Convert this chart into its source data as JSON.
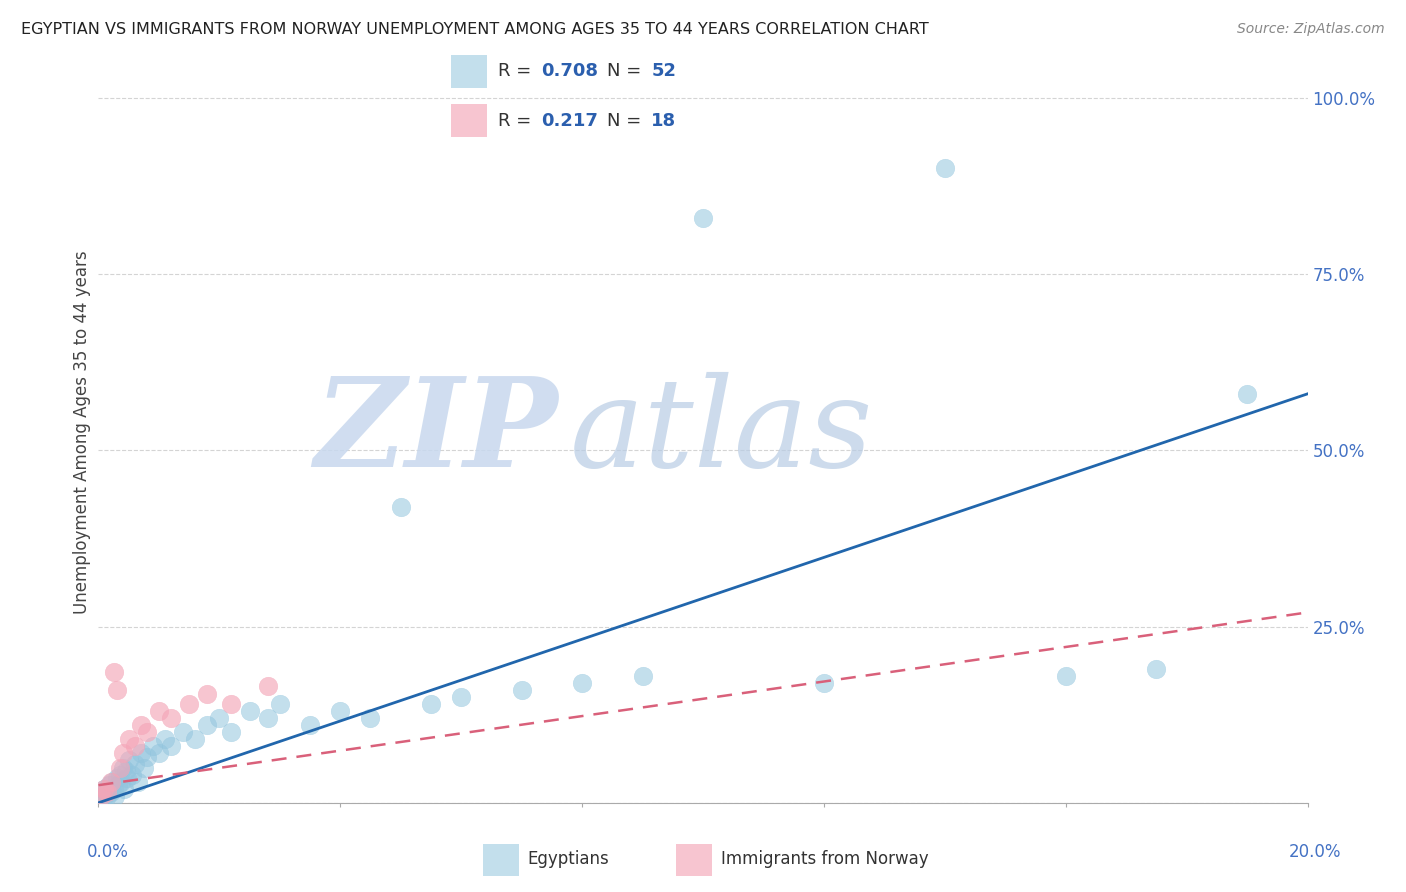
{
  "title": "EGYPTIAN VS IMMIGRANTS FROM NORWAY UNEMPLOYMENT AMONG AGES 35 TO 44 YEARS CORRELATION CHART",
  "source": "Source: ZipAtlas.com",
  "ylabel": "Unemployment Among Ages 35 to 44 years",
  "xlim": [
    0.0,
    20.0
  ],
  "ylim": [
    0.0,
    105.0
  ],
  "blue_R": 0.708,
  "blue_N": 52,
  "pink_R": 0.217,
  "pink_N": 18,
  "blue_color": "#92c5de",
  "blue_line_color": "#2166ac",
  "pink_color": "#f4a6b8",
  "pink_line_color": "#d9607a",
  "blue_scatter_x": [
    0.05,
    0.08,
    0.1,
    0.12,
    0.15,
    0.18,
    0.2,
    0.22,
    0.25,
    0.28,
    0.3,
    0.33,
    0.35,
    0.38,
    0.4,
    0.42,
    0.45,
    0.48,
    0.5,
    0.55,
    0.6,
    0.65,
    0.7,
    0.75,
    0.8,
    0.9,
    1.0,
    1.1,
    1.2,
    1.4,
    1.6,
    1.8,
    2.0,
    2.2,
    2.5,
    2.8,
    3.0,
    3.5,
    4.0,
    4.5,
    5.0,
    5.5,
    6.0,
    7.0,
    8.0,
    9.0,
    10.0,
    12.0,
    14.0,
    16.0,
    17.5,
    19.0
  ],
  "blue_scatter_y": [
    1.0,
    0.5,
    2.0,
    1.5,
    1.0,
    2.5,
    1.5,
    3.0,
    2.0,
    1.0,
    3.5,
    2.5,
    4.0,
    3.0,
    5.0,
    2.0,
    4.5,
    3.5,
    6.0,
    4.0,
    5.5,
    3.0,
    7.0,
    5.0,
    6.5,
    8.0,
    7.0,
    9.0,
    8.0,
    10.0,
    9.0,
    11.0,
    12.0,
    10.0,
    13.0,
    12.0,
    14.0,
    11.0,
    13.0,
    12.0,
    42.0,
    14.0,
    15.0,
    16.0,
    17.0,
    18.0,
    83.0,
    17.0,
    90.0,
    18.0,
    19.0,
    58.0
  ],
  "pink_scatter_x": [
    0.05,
    0.1,
    0.15,
    0.2,
    0.25,
    0.3,
    0.35,
    0.4,
    0.5,
    0.6,
    0.7,
    0.8,
    1.0,
    1.2,
    1.5,
    1.8,
    2.2,
    2.8
  ],
  "pink_scatter_y": [
    1.0,
    2.0,
    1.5,
    3.0,
    18.5,
    16.0,
    5.0,
    7.0,
    9.0,
    8.0,
    11.0,
    10.0,
    13.0,
    12.0,
    14.0,
    15.5,
    14.0,
    16.5
  ],
  "blue_reg_x0": 0.0,
  "blue_reg_y0": 0.0,
  "blue_reg_x1": 20.0,
  "blue_reg_y1": 58.0,
  "pink_reg_x0": 0.0,
  "pink_reg_y0": 2.5,
  "pink_reg_x1": 20.0,
  "pink_reg_y1": 27.0,
  "legend_label_blue": "Egyptians",
  "legend_label_pink": "Immigrants from Norway",
  "grid_color": "#d0d0d0",
  "right_tick_color": "#4472c4"
}
